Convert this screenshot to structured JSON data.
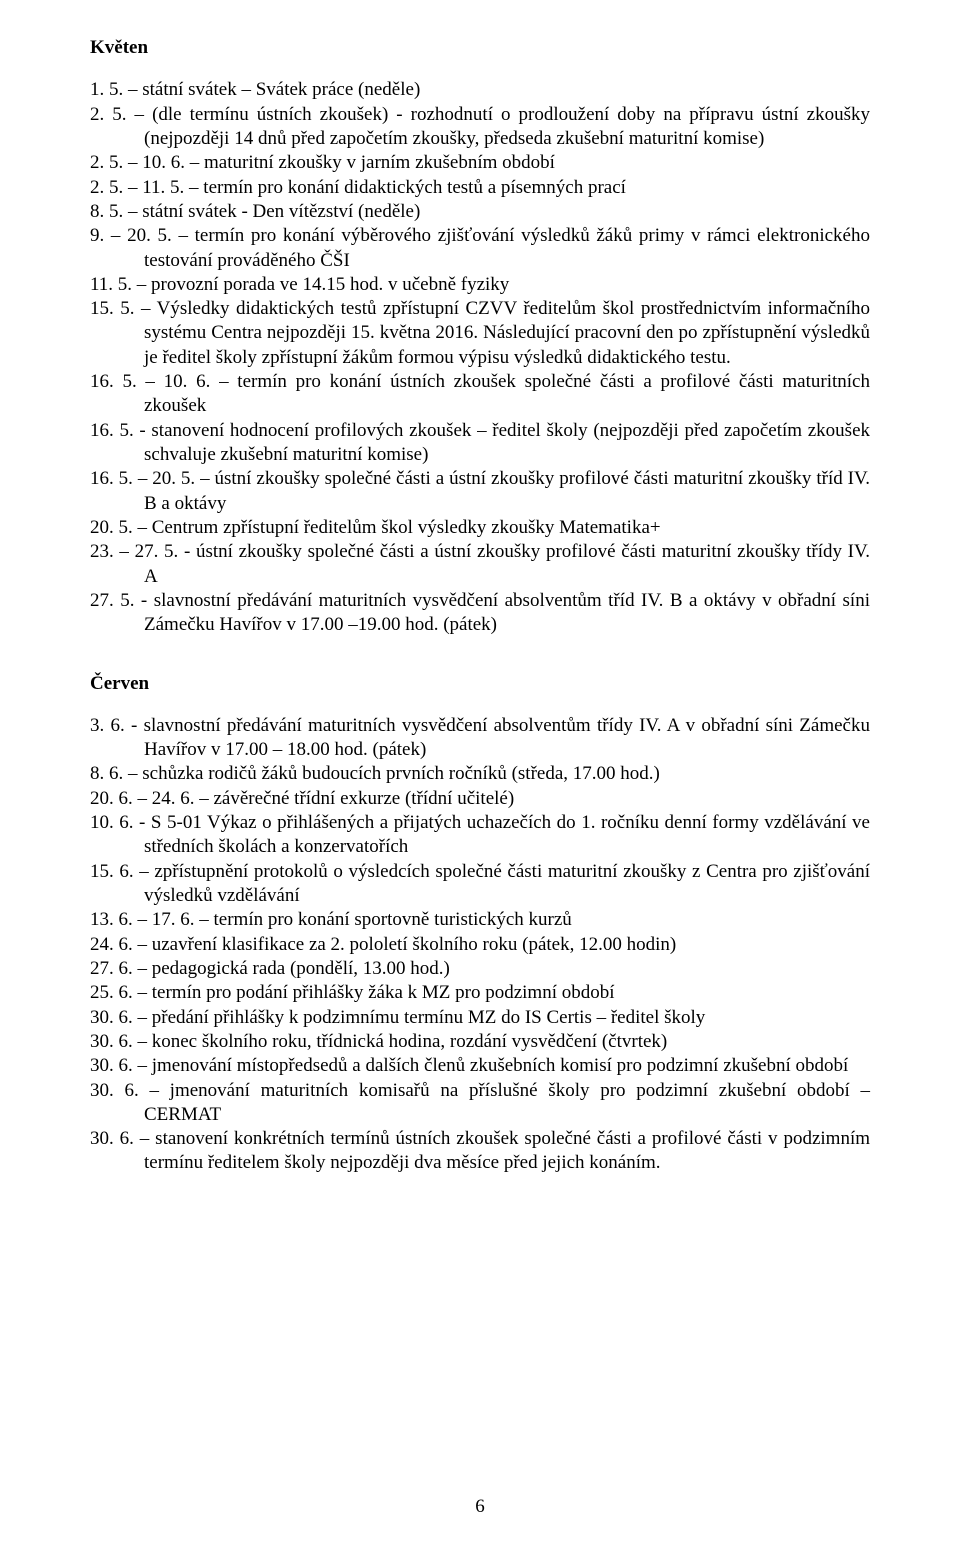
{
  "page_number": "6",
  "sections": {
    "kveten": {
      "heading": "Květen",
      "items": [
        "1. 5. – státní svátek – Svátek práce (neděle)",
        "2. 5. – (dle termínu ústních zkoušek) - rozhodnutí o prodloužení doby na přípravu ústní zkoušky (nejpozději 14 dnů před započetím zkoušky, předseda zkušební maturitní komise)",
        "2. 5. – 10. 6. – maturitní zkoušky v jarním zkušebním období",
        "2. 5. – 11. 5. – termín pro konání didaktických testů a písemných prací",
        "8. 5. – státní svátek - Den vítězství (neděle)",
        "9. – 20. 5. – termín pro konání výběrového zjišťování výsledků žáků primy v rámci elektronického testování prováděného ČŠI",
        "11. 5. – provozní porada ve 14.15 hod. v učebně fyziky",
        "15. 5. – Výsledky didaktických testů zpřístupní CZVV ředitelům škol prostřednictvím informačního systému Centra nejpozději 15. května 2016. Následující pracovní den po zpřístupnění výsledků je ředitel školy zpřístupní žákům formou výpisu výsledků didaktického testu.",
        "16. 5. – 10. 6. – termín pro konání ústních zkoušek společné části a profilové části maturitních zkoušek",
        "16. 5. - stanovení hodnocení profilových zkoušek – ředitel školy (nejpozději před započetím zkoušek schvaluje zkušební maturitní komise)",
        "16. 5. – 20. 5. – ústní zkoušky společné části a ústní zkoušky profilové části maturitní zkoušky tříd IV. B a oktávy",
        "20. 5. – Centrum zpřístupní ředitelům škol výsledky zkoušky Matematika+",
        "23. – 27. 5. - ústní zkoušky společné části a ústní zkoušky profilové části maturitní zkoušky třídy IV. A",
        "27. 5. - slavnostní předávání maturitních vysvědčení absolventům tříd IV. B a oktávy v obřadní síni Zámečku Havířov v 17.00 –19.00 hod. (pátek)"
      ]
    },
    "cerven": {
      "heading": "Červen",
      "items": [
        "3. 6. - slavnostní předávání maturitních vysvědčení absolventům třídy IV. A v obřadní síni Zámečku Havířov v 17.00 – 18.00 hod. (pátek)",
        "8. 6. – schůzka rodičů žáků budoucích prvních ročníků (středa, 17.00 hod.)",
        "20. 6. – 24. 6. – závěrečné třídní exkurze (třídní učitelé)",
        "10. 6. - S 5-01 Výkaz o přihlášených a přijatých uchazečích do 1. ročníku denní formy vzdělávání ve středních školách a konzervatořích",
        "15. 6. – zpřístupnění protokolů o výsledcích společné části maturitní zkoušky z Centra pro zjišťování výsledků vzdělávání",
        "13. 6. – 17. 6. – termín pro konání sportovně turistických kurzů",
        "24. 6. – uzavření klasifikace za 2. pololetí školního roku (pátek, 12.00 hodin)",
        "27. 6. – pedagogická rada (pondělí, 13.00 hod.)",
        "25. 6. – termín pro podání přihlášky žáka k MZ pro podzimní období",
        "30. 6. – předání přihlášky k podzimnímu termínu MZ do IS Certis – ředitel školy",
        "30. 6. – konec školního roku, třídnická hodina, rozdání vysvědčení (čtvrtek)",
        "30. 6. – jmenování místopředsedů a dalších členů zkušebních komisí pro podzimní zkušební období",
        "30. 6. – jmenování maturitních komisařů na příslušné školy pro podzimní zkušební období – CERMAT",
        "30. 6. – stanovení konkrétních termínů ústních zkoušek společné části a profilové části v podzimním termínu ředitelem školy nejpozději dva měsíce před jejich  konáním."
      ]
    }
  },
  "justify_indices": {
    "kveten": [
      1,
      5,
      7,
      8,
      9,
      10,
      12,
      13
    ],
    "cerven": [
      0,
      3,
      4,
      11,
      12,
      13
    ]
  }
}
